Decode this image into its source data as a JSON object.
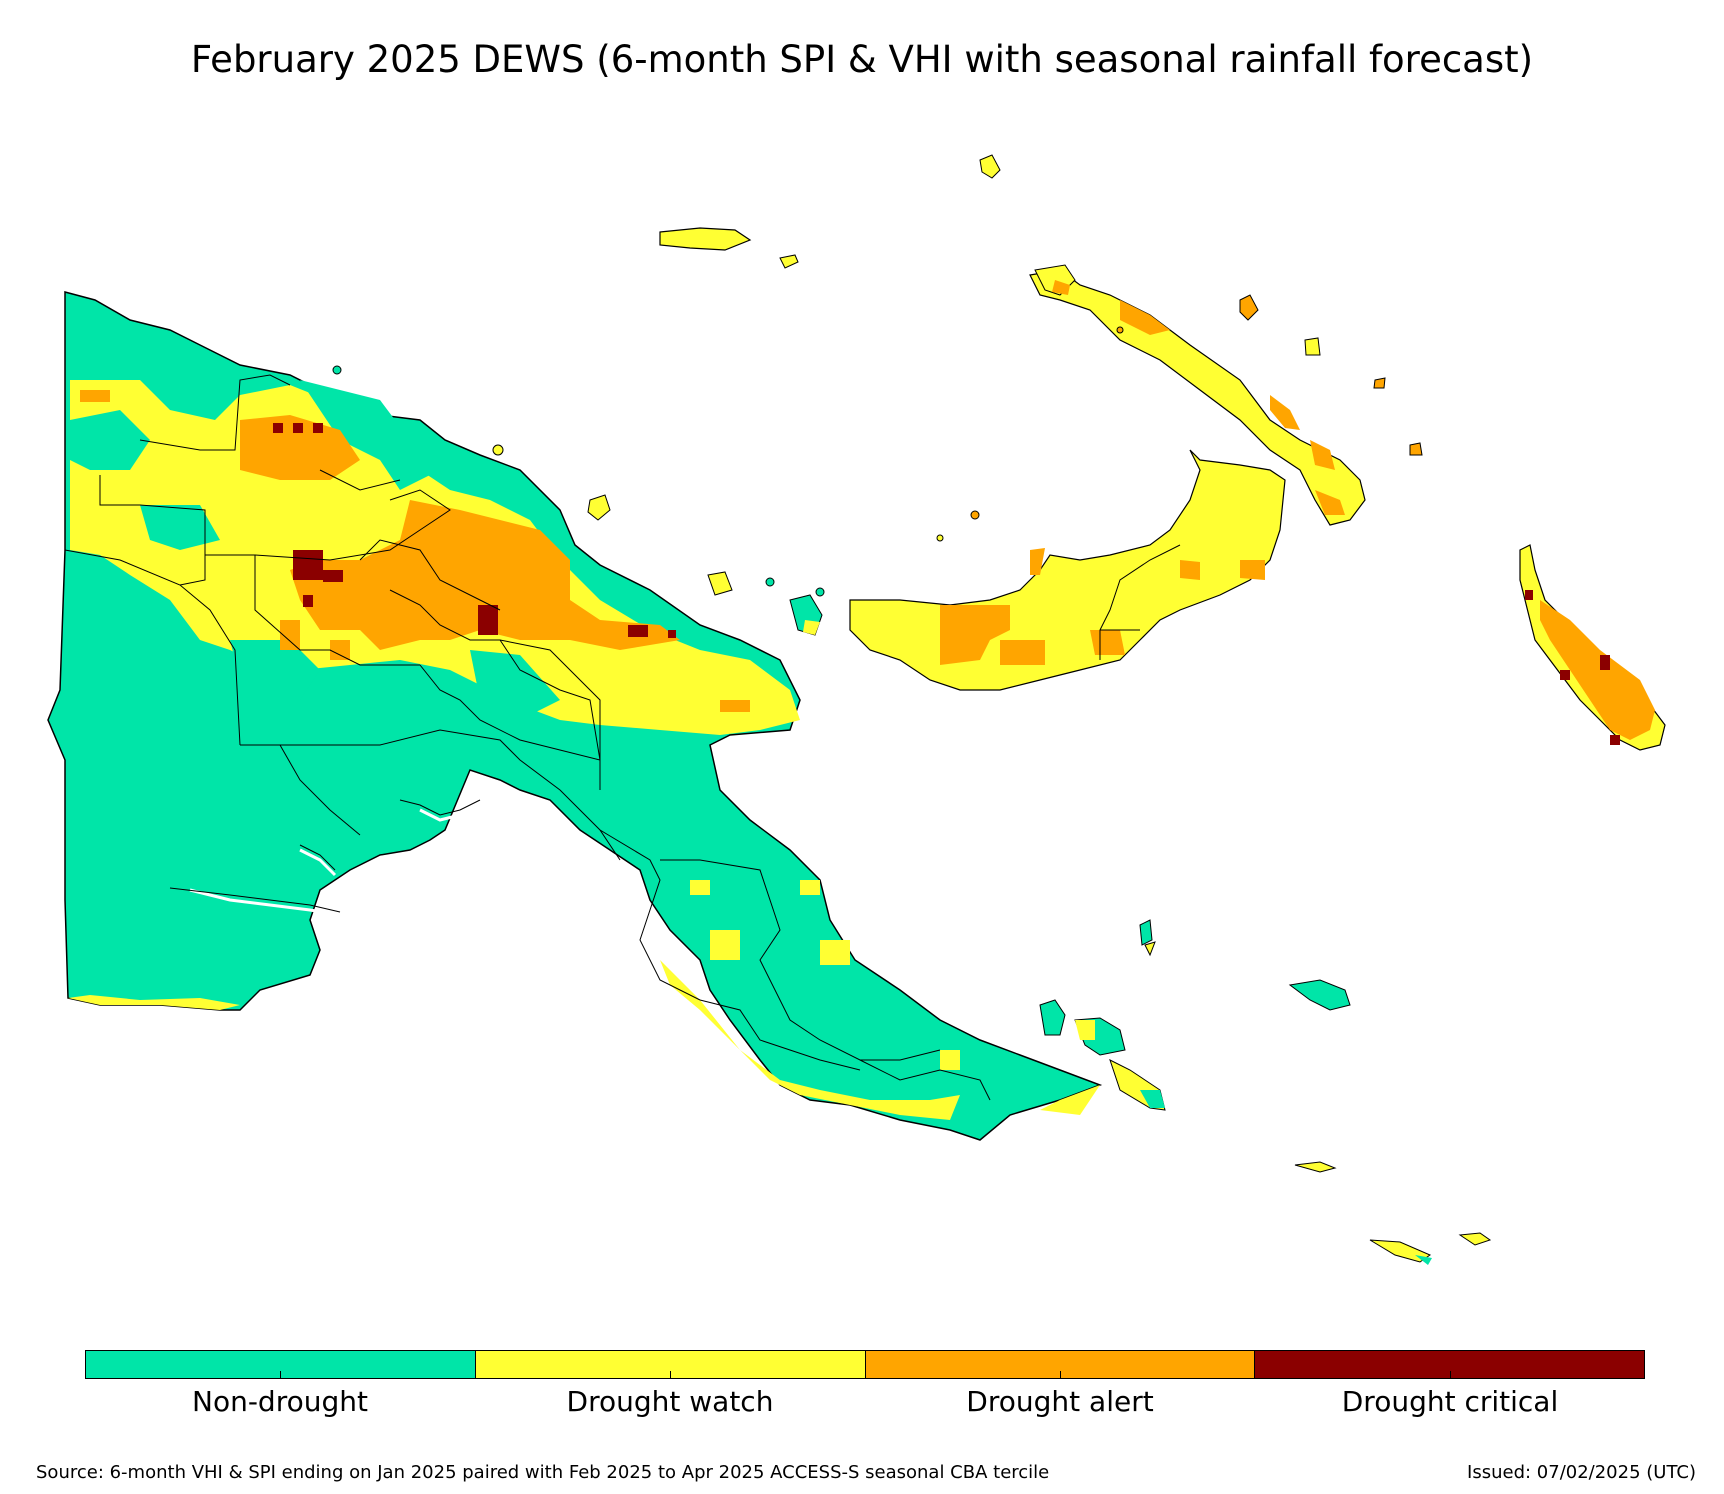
{
  "title": "February 2025 DEWS (6-month SPI & VHI with seasonal rainfall forecast)",
  "legend": {
    "items": [
      {
        "label": "Non-drought",
        "color": "#00E5A8"
      },
      {
        "label": "Drought watch",
        "color": "#FFFF33"
      },
      {
        "label": "Drought alert",
        "color": "#FFA500"
      },
      {
        "label": "Drought critical",
        "color": "#8B0000"
      }
    ]
  },
  "footer": {
    "source": "Source: 6-month VHI & SPI ending on Jan 2025 paired with Feb 2025 to Apr 2025 ACCESS-S seasonal CBA tercile",
    "issued": "Issued: 07/02/2025 (UTC)"
  },
  "colors": {
    "non_drought": "#00E5A8",
    "watch": "#FFFF33",
    "alert": "#FFA500",
    "critical": "#8B0000",
    "border": "#000000"
  }
}
